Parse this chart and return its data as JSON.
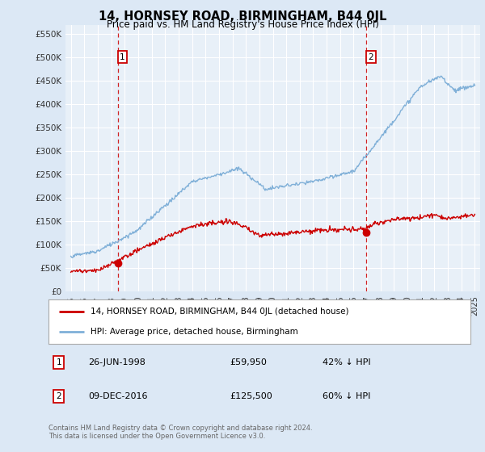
{
  "title": "14, HORNSEY ROAD, BIRMINGHAM, B44 0JL",
  "subtitle": "Price paid vs. HM Land Registry's House Price Index (HPI)",
  "legend_line1": "14, HORNSEY ROAD, BIRMINGHAM, B44 0JL (detached house)",
  "legend_line2": "HPI: Average price, detached house, Birmingham",
  "annotation1_label": "1",
  "annotation1_date": "26-JUN-1998",
  "annotation1_price": "£59,950",
  "annotation1_hpi": "42% ↓ HPI",
  "annotation1_year": 1998.48,
  "annotation1_value": 59950,
  "annotation2_label": "2",
  "annotation2_date": "09-DEC-2016",
  "annotation2_price": "£125,500",
  "annotation2_hpi": "60% ↓ HPI",
  "annotation2_year": 2016.94,
  "annotation2_value": 125500,
  "footer1": "Contains HM Land Registry data © Crown copyright and database right 2024.",
  "footer2": "This data is licensed under the Open Government Licence v3.0.",
  "ylim_max": 570000,
  "xlim_start": 1994.6,
  "xlim_end": 2025.4,
  "property_color": "#cc0000",
  "hpi_color": "#80b0d8",
  "background_color": "#dce8f5",
  "plot_bg_color": "#e8f0f8",
  "grid_color": "#ffffff",
  "annotation_box_color": "#cc0000",
  "tick_label_color": "#333333"
}
